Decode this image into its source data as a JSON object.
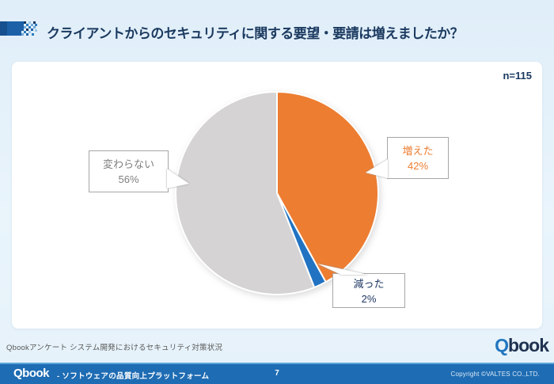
{
  "header": {
    "title": "クライアントからのセキュリティに関する要望・要請は増えましたか？"
  },
  "chart_data": {
    "type": "pie",
    "title": "クライアントからのセキュリティに関する要望・要請は増えましたか？",
    "sample_size_label": "n=115",
    "n": 115,
    "start_angle_deg": 0,
    "direction": "clockwise",
    "legend_position": "none",
    "slices": [
      {
        "id": "fueta",
        "label": "増えた",
        "pct": 42,
        "pct_text": "42%",
        "color": "#ED7D31",
        "label_color": "#ED7D31"
      },
      {
        "id": "hetta",
        "label": "減った",
        "pct": 2,
        "pct_text": "2%",
        "color": "#2173C2",
        "label_color": "#1F3864"
      },
      {
        "id": "kawaranai",
        "label": "変わらない",
        "pct": 56,
        "pct_text": "56%",
        "color": "#D5D3D3",
        "label_color": "#7F7F7F"
      }
    ]
  },
  "footer": {
    "source_note": "Qbookアンケート システム開発におけるセキュリティ対策状況",
    "brand_q": "Q",
    "brand_rest": "book"
  },
  "bottom_bar": {
    "brand": "Qbook",
    "tagline_prefix": "-",
    "tagline": "ソフトウェアの品質向上プラットフォーム",
    "page_number": "7",
    "copyright": "Copyright ©VALTES CO.,LTD."
  },
  "colors": {
    "accent_orange": "#ED7D31",
    "accent_blue": "#2173C2",
    "neutral_gray": "#D5D3D3",
    "bar_blue": "#1E6CB3",
    "title_navy": "#1B3A60",
    "background_blue": "#E9F4FB"
  }
}
